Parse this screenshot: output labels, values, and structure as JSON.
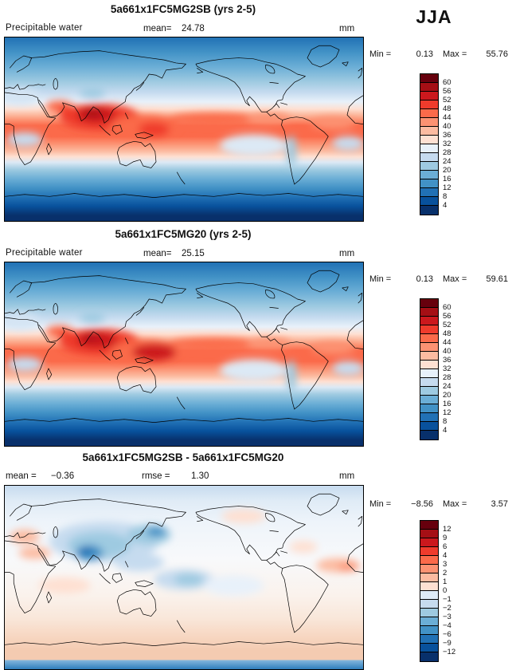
{
  "season": "JJA",
  "chart_data": [
    {
      "type": "heatmap",
      "projection": "global equirectangular (0-360E, 90N-90S)",
      "title": "5a661x1FC5MG2SB (yrs 2-5)",
      "variable": "Precipitable water",
      "units": "mm",
      "stats": [
        {
          "label": "mean=",
          "value": "24.78"
        }
      ],
      "min": {
        "label": "Min =",
        "value": "0.13"
      },
      "max": {
        "label": "Max =",
        "value": "55.76"
      },
      "style": "full",
      "colorbar": {
        "position": "right",
        "levels": [
          "60",
          "56",
          "52",
          "48",
          "44",
          "40",
          "36",
          "32",
          "28",
          "24",
          "20",
          "16",
          "12",
          "8",
          "4"
        ],
        "colors": [
          "#67000d",
          "#a50f15",
          "#cb181d",
          "#ef3b2c",
          "#fb6a4a",
          "#fc9272",
          "#fcbba1",
          "#fee0d2",
          "#e8f1fa",
          "#c6dbef",
          "#9ecae1",
          "#6baed6",
          "#4292c6",
          "#2171b5",
          "#08519c",
          "#08306b"
        ]
      }
    },
    {
      "type": "heatmap",
      "projection": "global equirectangular (0-360E, 90N-90S)",
      "title": "5a661x1FC5MG20 (yrs 2-5)",
      "variable": "Precipitable water",
      "units": "mm",
      "stats": [
        {
          "label": "mean=",
          "value": "25.15"
        }
      ],
      "min": {
        "label": "Min =",
        "value": "0.13"
      },
      "max": {
        "label": "Max =",
        "value": "59.61"
      },
      "style": "full",
      "colorbar": {
        "position": "right",
        "levels": [
          "60",
          "56",
          "52",
          "48",
          "44",
          "40",
          "36",
          "32",
          "28",
          "24",
          "20",
          "16",
          "12",
          "8",
          "4"
        ],
        "colors": [
          "#67000d",
          "#a50f15",
          "#cb181d",
          "#ef3b2c",
          "#fb6a4a",
          "#fc9272",
          "#fcbba1",
          "#fee0d2",
          "#e8f1fa",
          "#c6dbef",
          "#9ecae1",
          "#6baed6",
          "#4292c6",
          "#2171b5",
          "#08519c",
          "#08306b"
        ]
      }
    },
    {
      "type": "heatmap",
      "projection": "global equirectangular (0-360E, 90N-90S)",
      "title": "5a661x1FC5MG2SB - 5a661x1FC5MG20",
      "units": "mm",
      "stats": [
        {
          "label": "mean =",
          "value": "−0.36"
        },
        {
          "label": "rmse =",
          "value": "1.30"
        }
      ],
      "min": {
        "label": "Min =",
        "value": "−8.56"
      },
      "max": {
        "label": "Max =",
        "value": "3.57"
      },
      "style": "diff",
      "colorbar": {
        "position": "right",
        "levels": [
          "12",
          "9",
          "6",
          "4",
          "3",
          "2",
          "1",
          "0",
          "−1",
          "−2",
          "−3",
          "−4",
          "−6",
          "−9",
          "−12"
        ],
        "colors": [
          "#67000d",
          "#a50f15",
          "#cb181d",
          "#ef3b2c",
          "#fb6a4a",
          "#fc9272",
          "#fcbba1",
          "#fee0d2",
          "#deebf7",
          "#c6dbef",
          "#9ecae1",
          "#6baed6",
          "#4292c6",
          "#2171b5",
          "#08519c",
          "#08306b"
        ]
      }
    }
  ]
}
